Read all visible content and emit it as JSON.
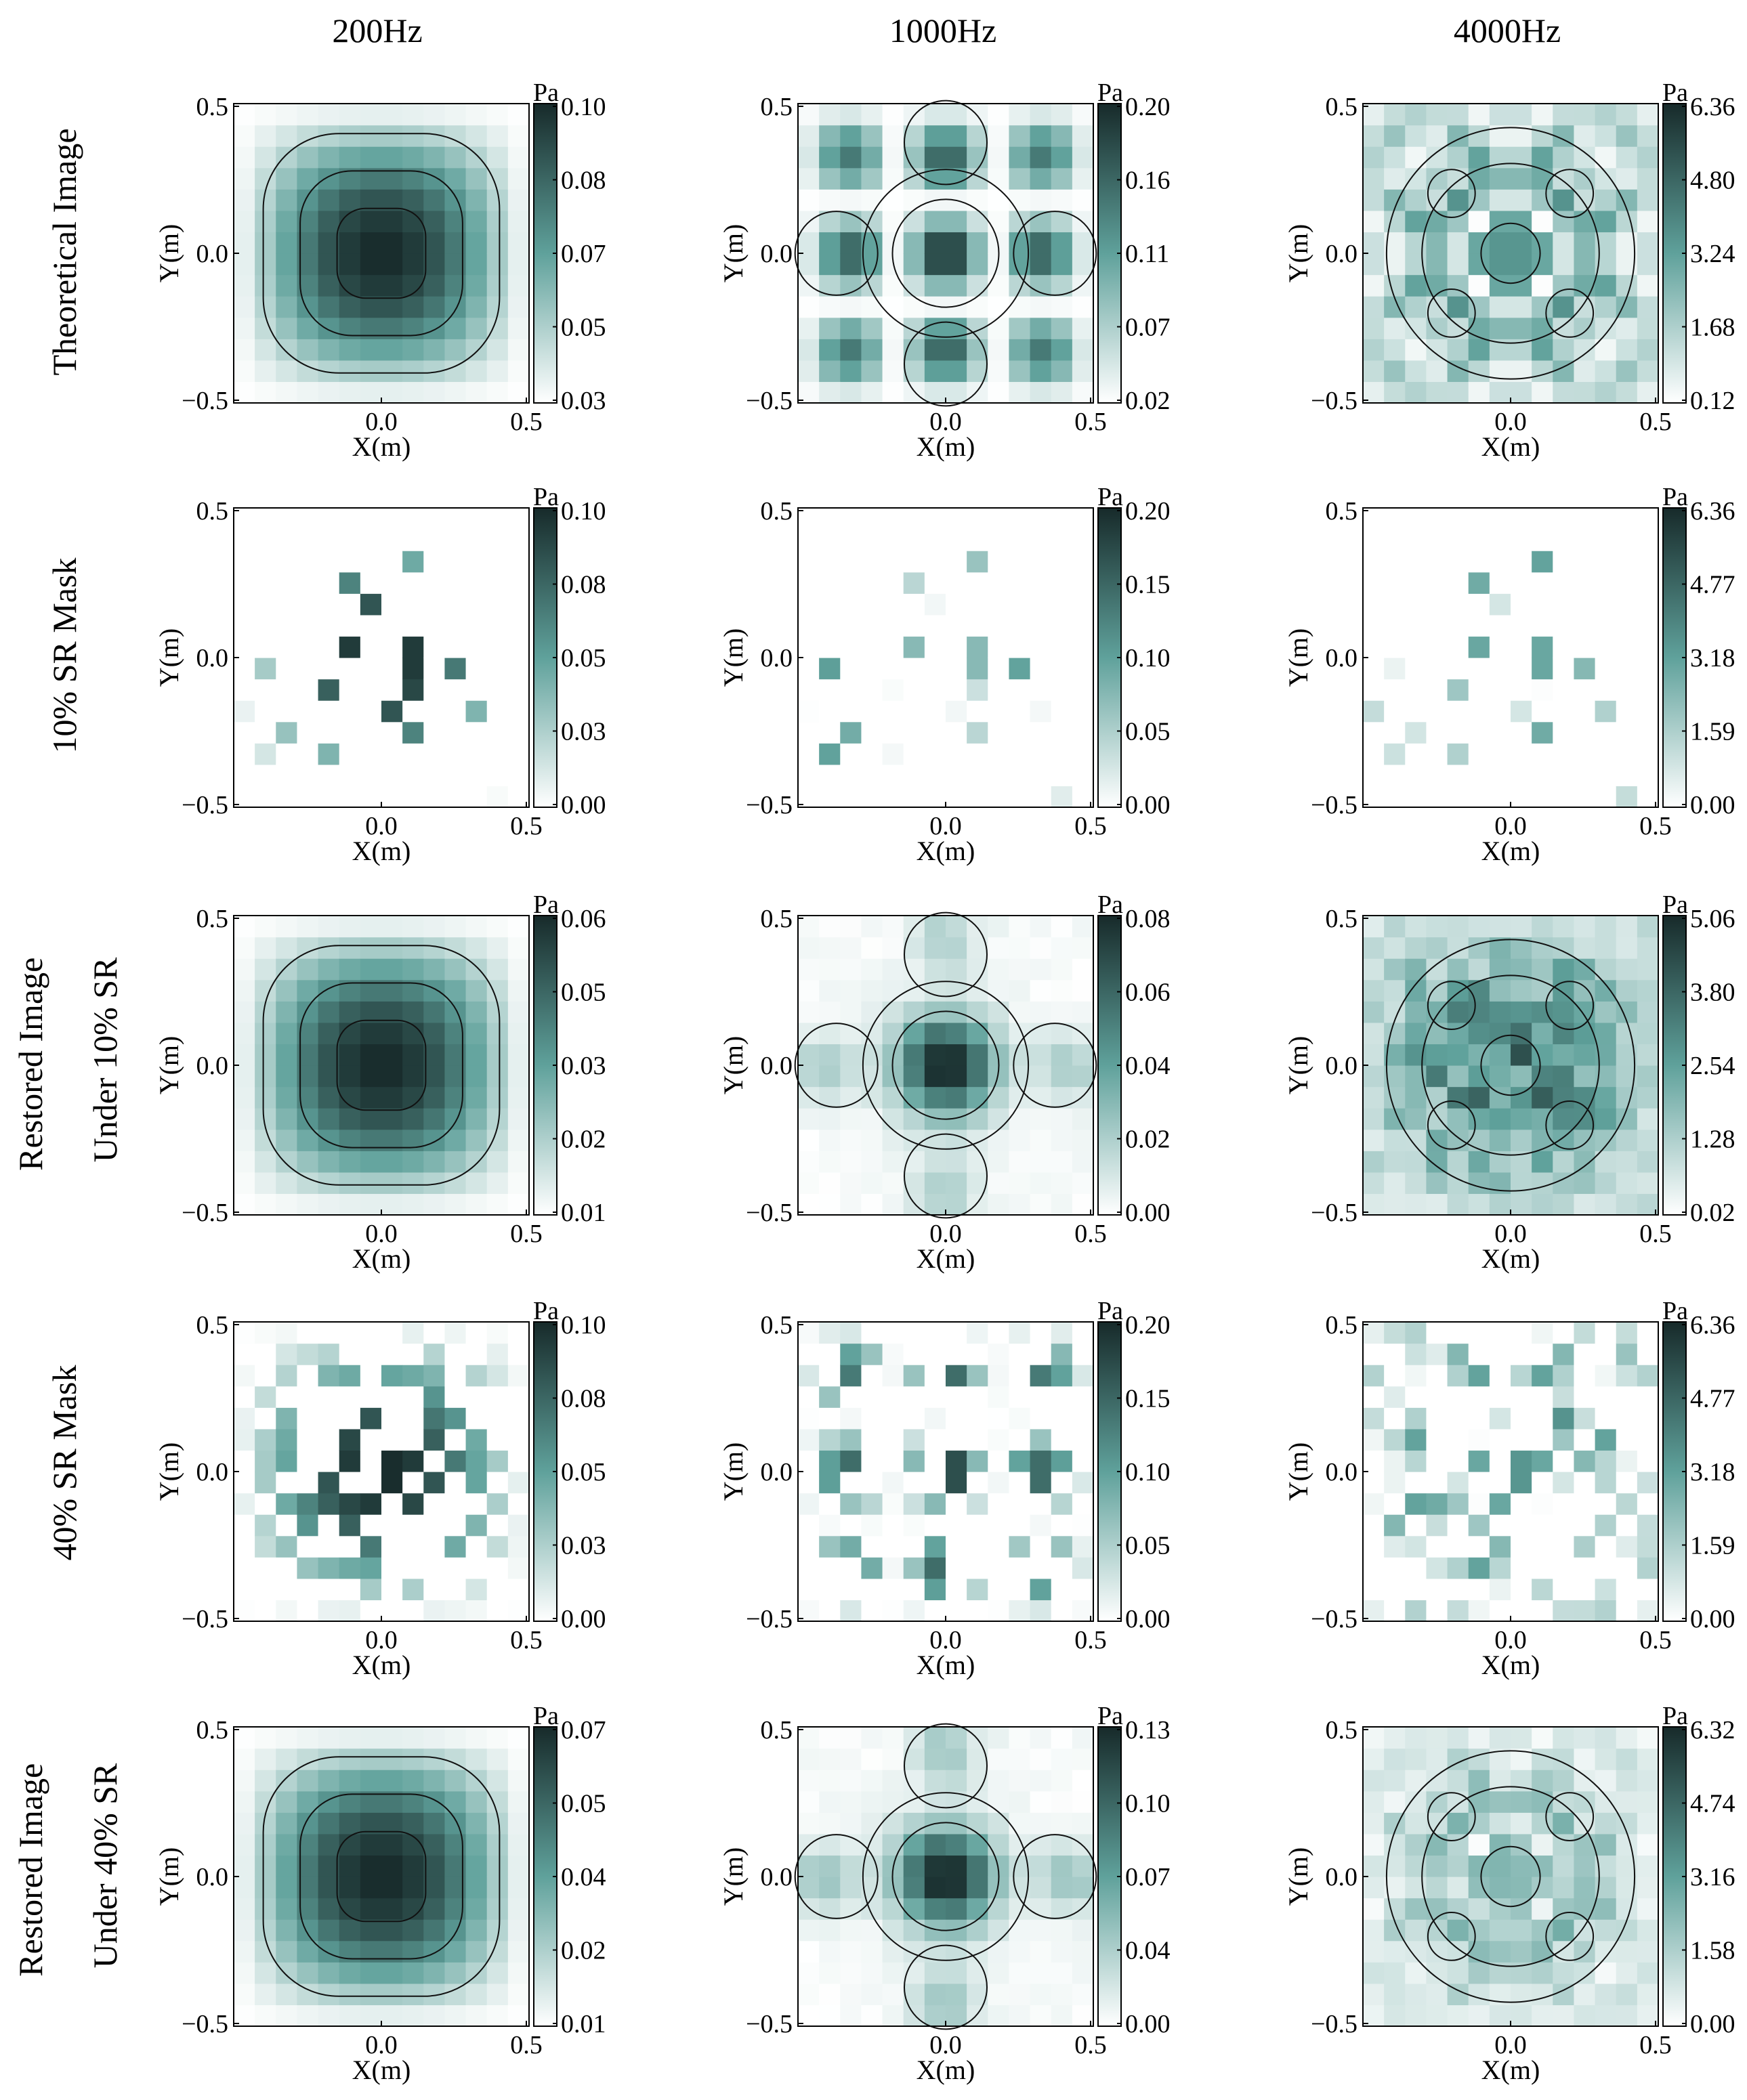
{
  "figure": {
    "column_titles": [
      "200Hz",
      "1000Hz",
      "4000Hz"
    ],
    "row_titles": [
      [
        "Theoretical Image"
      ],
      [
        "10% SR Mask"
      ],
      [
        "Restored Image",
        "Under 10% SR"
      ],
      [
        "40% SR Mask"
      ],
      [
        "Restored Image",
        "Under 40% SR"
      ]
    ],
    "colormap": {
      "low": "#ffffff",
      "mid": "#5fa19b",
      "high": "#172a2a",
      "contour_line": "#111111"
    }
  },
  "chart_data": [
    {
      "type": "heatmap",
      "row": 0,
      "col": 0,
      "title": "200Hz",
      "field": "mode1",
      "mask": "none",
      "xlabel": "X(m)",
      "ylabel": "Y(m)",
      "xlim": [
        -0.5,
        0.5
      ],
      "ylim": [
        -0.5,
        0.5
      ],
      "x_ticks": [
        "0.0",
        "0.5"
      ],
      "y_ticks": [
        "0.5",
        "0.0",
        "−0.5"
      ],
      "colorbar_unit": "Pa",
      "colorbar_ticks": [
        "0.10",
        "0.08",
        "0.07",
        "0.05",
        "0.03"
      ],
      "vmin": 0.03,
      "vmax": 0.1,
      "contours": true
    },
    {
      "type": "heatmap",
      "row": 0,
      "col": 1,
      "title": "1000Hz",
      "field": "mode3",
      "mask": "none",
      "xlabel": "X(m)",
      "ylabel": "Y(m)",
      "xlim": [
        -0.5,
        0.5
      ],
      "ylim": [
        -0.5,
        0.5
      ],
      "x_ticks": [
        "0.0",
        "0.5"
      ],
      "y_ticks": [
        "0.5",
        "0.0",
        "−0.5"
      ],
      "colorbar_unit": "Pa",
      "colorbar_ticks": [
        "0.20",
        "0.16",
        "0.11",
        "0.07",
        "0.02"
      ],
      "vmin": 0.02,
      "vmax": 0.2,
      "contours": true
    },
    {
      "type": "heatmap",
      "row": 0,
      "col": 2,
      "title": "4000Hz",
      "field": "complex",
      "mask": "none",
      "xlabel": "X(m)",
      "ylabel": "Y(m)",
      "xlim": [
        -0.5,
        0.5
      ],
      "ylim": [
        -0.5,
        0.5
      ],
      "x_ticks": [
        "0.0",
        "0.5"
      ],
      "y_ticks": [
        "0.5",
        "0.0",
        "−0.5"
      ],
      "colorbar_unit": "Pa",
      "colorbar_ticks": [
        "6.36",
        "4.80",
        "3.24",
        "1.68",
        "0.12"
      ],
      "vmin": 0.12,
      "vmax": 6.36,
      "contours": true
    },
    {
      "type": "heatmap",
      "row": 1,
      "col": 0,
      "title": "200Hz",
      "field": "mode1",
      "mask": "sr10",
      "xlabel": "X(m)",
      "ylabel": "Y(m)",
      "xlim": [
        -0.5,
        0.5
      ],
      "ylim": [
        -0.5,
        0.5
      ],
      "x_ticks": [
        "0.0",
        "0.5"
      ],
      "y_ticks": [
        "0.5",
        "0.0",
        "−0.5"
      ],
      "colorbar_unit": "Pa",
      "colorbar_ticks": [
        "0.10",
        "0.08",
        "0.05",
        "0.03",
        "0.00"
      ],
      "vmin": 0.0,
      "vmax": 0.1,
      "contours": false
    },
    {
      "type": "heatmap",
      "row": 1,
      "col": 1,
      "title": "1000Hz",
      "field": "mode3",
      "mask": "sr10",
      "xlabel": "X(m)",
      "ylabel": "Y(m)",
      "xlim": [
        -0.5,
        0.5
      ],
      "ylim": [
        -0.5,
        0.5
      ],
      "x_ticks": [
        "0.0",
        "0.5"
      ],
      "y_ticks": [
        "0.5",
        "0.0",
        "−0.5"
      ],
      "colorbar_unit": "Pa",
      "colorbar_ticks": [
        "0.20",
        "0.15",
        "0.10",
        "0.05",
        "0.00"
      ],
      "vmin": 0.0,
      "vmax": 0.2,
      "contours": false
    },
    {
      "type": "heatmap",
      "row": 1,
      "col": 2,
      "title": "4000Hz",
      "field": "complex",
      "mask": "sr10",
      "xlabel": "X(m)",
      "ylabel": "Y(m)",
      "xlim": [
        -0.5,
        0.5
      ],
      "ylim": [
        -0.5,
        0.5
      ],
      "x_ticks": [
        "0.0",
        "0.5"
      ],
      "y_ticks": [
        "0.5",
        "0.0",
        "−0.5"
      ],
      "colorbar_unit": "Pa",
      "colorbar_ticks": [
        "6.36",
        "4.77",
        "3.18",
        "1.59",
        "0.00"
      ],
      "vmin": 0.0,
      "vmax": 6.36,
      "contours": false
    },
    {
      "type": "heatmap",
      "row": 2,
      "col": 0,
      "title": "200Hz",
      "field": "mode1",
      "mask": "none",
      "xlabel": "X(m)",
      "ylabel": "Y(m)",
      "xlim": [
        -0.5,
        0.5
      ],
      "ylim": [
        -0.5,
        0.5
      ],
      "x_ticks": [
        "0.0",
        "0.5"
      ],
      "y_ticks": [
        "0.5",
        "0.0",
        "−0.5"
      ],
      "colorbar_unit": "Pa",
      "colorbar_ticks": [
        "0.06",
        "0.05",
        "0.03",
        "0.02",
        "0.01"
      ],
      "vmin": 0.01,
      "vmax": 0.06,
      "contours": true
    },
    {
      "type": "heatmap",
      "row": 2,
      "col": 1,
      "title": "1000Hz",
      "field": "restored3a",
      "mask": "none",
      "xlabel": "X(m)",
      "ylabel": "Y(m)",
      "xlim": [
        -0.5,
        0.5
      ],
      "ylim": [
        -0.5,
        0.5
      ],
      "x_ticks": [
        "0.0",
        "0.5"
      ],
      "y_ticks": [
        "0.5",
        "0.0",
        "−0.5"
      ],
      "colorbar_unit": "Pa",
      "colorbar_ticks": [
        "0.08",
        "0.06",
        "0.04",
        "0.02",
        "0.00"
      ],
      "vmin": 0.0,
      "vmax": 0.08,
      "contours": true
    },
    {
      "type": "heatmap",
      "row": 2,
      "col": 2,
      "title": "4000Hz",
      "field": "noisy",
      "mask": "none",
      "xlabel": "X(m)",
      "ylabel": "Y(m)",
      "xlim": [
        -0.5,
        0.5
      ],
      "ylim": [
        -0.5,
        0.5
      ],
      "x_ticks": [
        "0.0",
        "0.5"
      ],
      "y_ticks": [
        "0.5",
        "0.0",
        "−0.5"
      ],
      "colorbar_unit": "Pa",
      "colorbar_ticks": [
        "5.06",
        "3.80",
        "2.54",
        "1.28",
        "0.02"
      ],
      "vmin": 0.02,
      "vmax": 5.06,
      "contours": true
    },
    {
      "type": "heatmap",
      "row": 3,
      "col": 0,
      "title": "200Hz",
      "field": "mode1",
      "mask": "sr40",
      "xlabel": "X(m)",
      "ylabel": "Y(m)",
      "xlim": [
        -0.5,
        0.5
      ],
      "ylim": [
        -0.5,
        0.5
      ],
      "x_ticks": [
        "0.0",
        "0.5"
      ],
      "y_ticks": [
        "0.5",
        "0.0",
        "−0.5"
      ],
      "colorbar_unit": "Pa",
      "colorbar_ticks": [
        "0.10",
        "0.08",
        "0.05",
        "0.03",
        "0.00"
      ],
      "vmin": 0.0,
      "vmax": 0.1,
      "contours": false
    },
    {
      "type": "heatmap",
      "row": 3,
      "col": 1,
      "title": "1000Hz",
      "field": "mode3",
      "mask": "sr40",
      "xlabel": "X(m)",
      "ylabel": "Y(m)",
      "xlim": [
        -0.5,
        0.5
      ],
      "ylim": [
        -0.5,
        0.5
      ],
      "x_ticks": [
        "0.0",
        "0.5"
      ],
      "y_ticks": [
        "0.5",
        "0.0",
        "−0.5"
      ],
      "colorbar_unit": "Pa",
      "colorbar_ticks": [
        "0.20",
        "0.15",
        "0.10",
        "0.05",
        "0.00"
      ],
      "vmin": 0.0,
      "vmax": 0.2,
      "contours": false
    },
    {
      "type": "heatmap",
      "row": 3,
      "col": 2,
      "title": "4000Hz",
      "field": "complex",
      "mask": "sr40",
      "xlabel": "X(m)",
      "ylabel": "Y(m)",
      "xlim": [
        -0.5,
        0.5
      ],
      "ylim": [
        -0.5,
        0.5
      ],
      "x_ticks": [
        "0.0",
        "0.5"
      ],
      "y_ticks": [
        "0.5",
        "0.0",
        "−0.5"
      ],
      "colorbar_unit": "Pa",
      "colorbar_ticks": [
        "6.36",
        "4.77",
        "3.18",
        "1.59",
        "0.00"
      ],
      "vmin": 0.0,
      "vmax": 6.36,
      "contours": false
    },
    {
      "type": "heatmap",
      "row": 4,
      "col": 0,
      "title": "200Hz",
      "field": "mode1",
      "mask": "none",
      "xlabel": "X(m)",
      "ylabel": "Y(m)",
      "xlim": [
        -0.5,
        0.5
      ],
      "ylim": [
        -0.5,
        0.5
      ],
      "x_ticks": [
        "0.0",
        "0.5"
      ],
      "y_ticks": [
        "0.5",
        "0.0",
        "−0.5"
      ],
      "colorbar_unit": "Pa",
      "colorbar_ticks": [
        "0.07",
        "0.05",
        "0.04",
        "0.02",
        "0.01"
      ],
      "vmin": 0.01,
      "vmax": 0.07,
      "contours": true
    },
    {
      "type": "heatmap",
      "row": 4,
      "col": 1,
      "title": "1000Hz",
      "field": "restored3b",
      "mask": "none",
      "xlabel": "X(m)",
      "ylabel": "Y(m)",
      "xlim": [
        -0.5,
        0.5
      ],
      "ylim": [
        -0.5,
        0.5
      ],
      "x_ticks": [
        "0.0",
        "0.5"
      ],
      "y_ticks": [
        "0.5",
        "0.0",
        "−0.5"
      ],
      "colorbar_unit": "Pa",
      "colorbar_ticks": [
        "0.13",
        "0.10",
        "0.07",
        "0.04",
        "0.00"
      ],
      "vmin": 0.0,
      "vmax": 0.13,
      "contours": true
    },
    {
      "type": "heatmap",
      "row": 4,
      "col": 2,
      "title": "4000Hz",
      "field": "complex_soft",
      "mask": "none",
      "xlabel": "X(m)",
      "ylabel": "Y(m)",
      "xlim": [
        -0.5,
        0.5
      ],
      "ylim": [
        -0.5,
        0.5
      ],
      "x_ticks": [
        "0.0",
        "0.5"
      ],
      "y_ticks": [
        "0.5",
        "0.0",
        "−0.5"
      ],
      "colorbar_unit": "Pa",
      "colorbar_ticks": [
        "6.32",
        "4.74",
        "3.16",
        "1.58",
        "0.00"
      ],
      "vmin": 0.0,
      "vmax": 6.32,
      "contours": true
    }
  ]
}
